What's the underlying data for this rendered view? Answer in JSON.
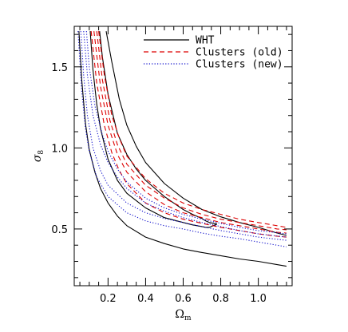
{
  "chart_data": {
    "type": "line",
    "title": "",
    "xlabel": "Ω",
    "xlabel_sub": "m",
    "ylabel": "σ",
    "ylabel_sub": "8",
    "xlim": [
      0.02,
      1.18
    ],
    "ylim": [
      0.15,
      1.75
    ],
    "xticks": [
      0.2,
      0.4,
      0.6,
      0.8,
      1.0
    ],
    "xtick_labels": [
      "0.2",
      "0.4",
      "0.6",
      "0.8",
      "1.0"
    ],
    "yticks": [
      0.5,
      1.0,
      1.5
    ],
    "ytick_labels": [
      "0.5",
      "1.0",
      "1.5"
    ],
    "xminor_step": 0.05,
    "yminor_step": 0.1,
    "grid": false,
    "legend_position": "top-right",
    "series": [
      {
        "name": "WHT",
        "color": "#000000",
        "dash": "solid",
        "contours": [
          {
            "x": [
              0.045,
              0.06,
              0.08,
              0.1,
              0.13,
              0.16,
              0.2,
              0.25,
              0.3,
              0.4,
              0.5,
              0.6,
              0.7,
              0.8,
              0.9,
              1.0,
              1.1,
              1.15
            ],
            "y": [
              1.72,
              1.42,
              1.15,
              0.99,
              0.85,
              0.75,
              0.66,
              0.58,
              0.52,
              0.45,
              0.41,
              0.377,
              0.355,
              0.335,
              0.315,
              0.3,
              0.28,
              0.27
            ]
          },
          {
            "x": [
              0.105,
              0.12,
              0.14,
              0.16,
              0.2,
              0.25,
              0.3,
              0.4,
              0.5,
              0.6,
              0.65,
              0.7,
              0.72,
              0.74,
              0.76,
              0.78
            ],
            "y": [
              1.72,
              1.48,
              1.27,
              1.12,
              0.93,
              0.8,
              0.72,
              0.63,
              0.57,
              0.54,
              0.525,
              0.515,
              0.51,
              0.51,
              0.52,
              0.53
            ]
          },
          {
            "x": [
              0.155,
              0.17,
              0.2,
              0.25,
              0.3,
              0.35,
              0.4,
              0.5,
              0.55,
              0.6,
              0.65,
              0.7,
              0.72,
              0.74,
              0.76,
              0.78
            ],
            "y": [
              1.72,
              1.56,
              1.33,
              1.09,
              0.96,
              0.87,
              0.8,
              0.7,
              0.66,
              0.62,
              0.59,
              0.565,
              0.55,
              0.54,
              0.535,
              0.53
            ]
          },
          {
            "x": [
              0.19,
              0.22,
              0.26,
              0.3,
              0.35,
              0.4,
              0.5,
              0.6,
              0.7,
              0.8,
              0.9,
              1.0,
              1.1,
              1.15
            ],
            "y": [
              1.72,
              1.53,
              1.3,
              1.14,
              1.01,
              0.91,
              0.78,
              0.69,
              0.62,
              0.575,
              0.54,
              0.51,
              0.475,
              0.46
            ]
          }
        ]
      },
      {
        "name": "Clusters (old)",
        "color": "#dd0000",
        "dash": "dashed",
        "contours": [
          {
            "x": [
              0.11,
              0.14,
              0.18,
              0.22,
              0.26,
              0.3,
              0.4,
              0.5,
              0.6,
              0.7,
              0.8,
              0.9,
              1.0,
              1.1,
              1.15
            ],
            "y": [
              1.72,
              1.4,
              1.14,
              0.97,
              0.86,
              0.78,
              0.66,
              0.6,
              0.56,
              0.535,
              0.51,
              0.49,
              0.47,
              0.455,
              0.45
            ]
          },
          {
            "x": [
              0.125,
              0.16,
              0.2,
              0.25,
              0.3,
              0.4,
              0.5,
              0.6,
              0.7,
              0.8,
              0.9,
              1.0,
              1.1,
              1.15
            ],
            "y": [
              1.72,
              1.38,
              1.14,
              0.96,
              0.85,
              0.73,
              0.65,
              0.6,
              0.57,
              0.54,
              0.52,
              0.5,
              0.48,
              0.475
            ]
          },
          {
            "x": [
              0.14,
              0.17,
              0.21,
              0.25,
              0.3,
              0.4,
              0.5,
              0.6,
              0.7,
              0.8,
              0.9,
              1.0,
              1.1,
              1.15
            ],
            "y": [
              1.72,
              1.42,
              1.17,
              1.02,
              0.9,
              0.77,
              0.69,
              0.63,
              0.59,
              0.56,
              0.54,
              0.52,
              0.5,
              0.495
            ]
          },
          {
            "x": [
              0.15,
              0.18,
              0.22,
              0.26,
              0.3,
              0.4,
              0.5,
              0.6,
              0.7,
              0.8,
              0.9,
              1.0,
              1.1,
              1.15
            ],
            "y": [
              1.72,
              1.45,
              1.2,
              1.06,
              0.95,
              0.81,
              0.72,
              0.66,
              0.62,
              0.59,
              0.56,
              0.54,
              0.52,
              0.51
            ]
          }
        ]
      },
      {
        "name": "Clusters (new)",
        "color": "#1111cc",
        "dash": "dotted",
        "contours": [
          {
            "x": [
              0.04,
              0.06,
              0.08,
              0.1,
              0.14,
              0.2,
              0.3,
              0.4,
              0.5,
              0.6,
              0.7,
              0.8,
              0.9,
              1.0,
              1.15
            ],
            "y": [
              1.72,
              1.35,
              1.12,
              0.98,
              0.82,
              0.7,
              0.6,
              0.55,
              0.52,
              0.5,
              0.475,
              0.455,
              0.44,
              0.42,
              0.39
            ]
          },
          {
            "x": [
              0.055,
              0.07,
              0.09,
              0.12,
              0.16,
              0.2,
              0.3,
              0.4,
              0.5,
              0.6,
              0.7,
              0.8,
              0.9,
              1.0,
              1.15
            ],
            "y": [
              1.72,
              1.45,
              1.2,
              1.0,
              0.86,
              0.77,
              0.66,
              0.6,
              0.565,
              0.54,
              0.515,
              0.49,
              0.47,
              0.45,
              0.43
            ]
          },
          {
            "x": [
              0.07,
              0.09,
              0.12,
              0.16,
              0.2,
              0.25,
              0.3,
              0.4,
              0.5,
              0.6,
              0.7,
              0.8,
              0.9,
              1.0,
              1.15
            ],
            "y": [
              1.72,
              1.45,
              1.2,
              1.02,
              0.91,
              0.82,
              0.75,
              0.66,
              0.61,
              0.57,
              0.54,
              0.515,
              0.49,
              0.47,
              0.45
            ]
          },
          {
            "x": [
              0.085,
              0.1,
              0.13,
              0.17,
              0.2,
              0.25,
              0.3,
              0.4,
              0.5,
              0.6,
              0.7,
              0.8,
              0.9,
              1.0,
              1.15
            ],
            "y": [
              1.72,
              1.5,
              1.26,
              1.08,
              0.98,
              0.87,
              0.79,
              0.69,
              0.63,
              0.59,
              0.56,
              0.535,
              0.51,
              0.49,
              0.47
            ]
          }
        ]
      }
    ]
  }
}
